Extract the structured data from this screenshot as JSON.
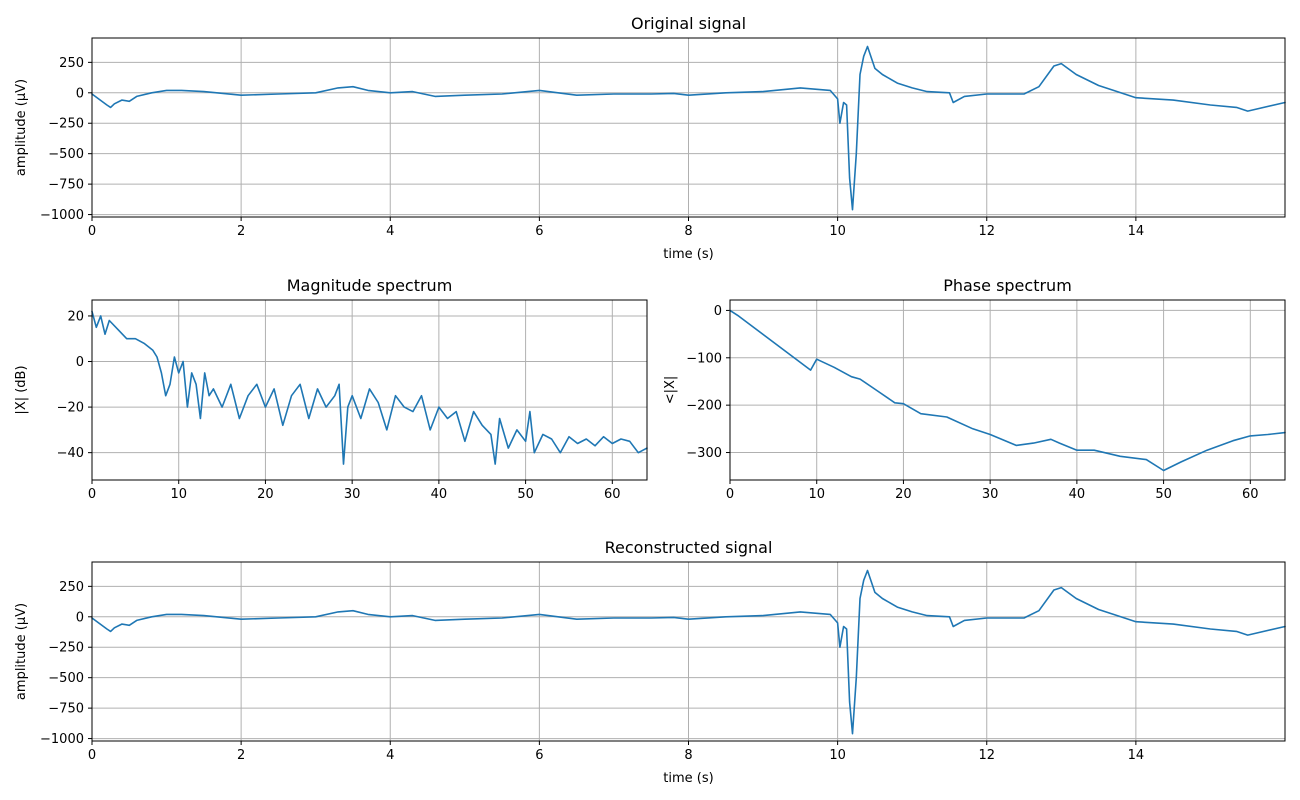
{
  "figure": {
    "line_color": "#1f77b4",
    "grid_color": "#b0b0b0"
  },
  "chart_data": [
    {
      "id": "original",
      "type": "line",
      "title": "Original signal",
      "xlabel": "time (s)",
      "ylabel": "amplitude (µV)",
      "xlim": [
        0,
        16.0
      ],
      "ylim": [
        -1020,
        450
      ],
      "xticks": [
        0,
        2,
        4,
        6,
        8,
        10,
        12,
        14
      ],
      "yticks": [
        250,
        0,
        -250,
        -500,
        -750,
        -1000
      ],
      "xtick_labels": [
        "0",
        "2",
        "4",
        "6",
        "8",
        "10",
        "12",
        "14"
      ],
      "ytick_labels": [
        "250",
        "0",
        "−250",
        "−500",
        "−750",
        "−1000"
      ],
      "grid": true,
      "x": [
        0,
        0.2,
        0.25,
        0.3,
        0.4,
        0.5,
        0.6,
        0.8,
        1.0,
        1.2,
        1.5,
        2.0,
        2.5,
        3.0,
        3.3,
        3.5,
        3.7,
        4.0,
        4.3,
        4.6,
        5.0,
        5.5,
        6.0,
        6.5,
        7.0,
        7.5,
        7.8,
        8.0,
        8.5,
        9.0,
        9.5,
        9.9,
        10.0,
        10.03,
        10.08,
        10.12,
        10.16,
        10.2,
        10.25,
        10.3,
        10.35,
        10.4,
        10.5,
        10.6,
        10.8,
        11.0,
        11.2,
        11.5,
        11.55,
        11.7,
        12.0,
        12.5,
        12.7,
        12.9,
        13.0,
        13.2,
        13.5,
        13.7,
        14.0,
        14.5,
        15.0,
        15.35,
        15.5,
        16.0
      ],
      "y": [
        -10,
        -100,
        -120,
        -90,
        -60,
        -70,
        -30,
        0,
        20,
        20,
        10,
        -20,
        -10,
        0,
        40,
        50,
        20,
        0,
        10,
        -30,
        -20,
        -10,
        20,
        -20,
        -10,
        -10,
        -5,
        -20,
        0,
        10,
        40,
        20,
        -50,
        -250,
        -80,
        -100,
        -700,
        -960,
        -500,
        150,
        300,
        380,
        200,
        150,
        80,
        40,
        10,
        0,
        -80,
        -30,
        -10,
        -10,
        50,
        220,
        240,
        150,
        60,
        20,
        -40,
        -60,
        -100,
        -120,
        -150,
        -80
      ]
    },
    {
      "id": "magnitude",
      "type": "line",
      "title": "Magnitude spectrum",
      "xlabel": "",
      "ylabel": "|X| (dB)",
      "xlim": [
        0,
        64
      ],
      "ylim": [
        -52,
        27
      ],
      "xticks": [
        0,
        10,
        20,
        30,
        40,
        50,
        60
      ],
      "yticks": [
        20,
        0,
        -20,
        -40
      ],
      "xtick_labels": [
        "0",
        "10",
        "20",
        "30",
        "40",
        "50",
        "60"
      ],
      "ytick_labels": [
        "20",
        "0",
        "−20",
        "−40"
      ],
      "grid": true,
      "x": [
        0,
        0.5,
        1,
        1.5,
        2,
        3,
        4,
        5,
        6,
        7,
        7.5,
        8,
        8.5,
        9,
        9.5,
        10,
        10.5,
        11,
        11.5,
        12,
        12.5,
        13,
        13.5,
        14,
        15,
        16,
        17,
        18,
        19,
        20,
        21,
        22,
        23,
        24,
        25,
        26,
        27,
        28,
        28.5,
        29,
        29.5,
        30,
        31,
        32,
        33,
        34,
        35,
        36,
        37,
        38,
        39,
        40,
        41,
        42,
        43,
        44,
        45,
        46,
        46.5,
        47,
        48,
        49,
        50,
        50.5,
        51,
        52,
        53,
        54,
        55,
        56,
        57,
        58,
        59,
        60,
        61,
        62,
        63,
        64
      ],
      "y": [
        22,
        15,
        20,
        12,
        18,
        14,
        10,
        10,
        8,
        5,
        2,
        -5,
        -15,
        -10,
        2,
        -5,
        0,
        -20,
        -5,
        -10,
        -25,
        -5,
        -15,
        -12,
        -20,
        -10,
        -25,
        -15,
        -10,
        -20,
        -12,
        -28,
        -15,
        -10,
        -25,
        -12,
        -20,
        -15,
        -10,
        -45,
        -20,
        -15,
        -25,
        -12,
        -18,
        -30,
        -15,
        -20,
        -22,
        -15,
        -30,
        -20,
        -25,
        -22,
        -35,
        -22,
        -28,
        -32,
        -45,
        -25,
        -38,
        -30,
        -35,
        -22,
        -40,
        -32,
        -34,
        -40,
        -33,
        -36,
        -34,
        -37,
        -33,
        -36,
        -34,
        -35,
        -40,
        -38
      ]
    },
    {
      "id": "phase",
      "type": "line",
      "title": "Phase spectrum",
      "xlabel": "",
      "ylabel": "<|X|",
      "xlim": [
        0,
        64
      ],
      "ylim": [
        -358,
        22
      ],
      "xticks": [
        0,
        10,
        20,
        30,
        40,
        50,
        60
      ],
      "yticks": [
        0,
        -100,
        -200,
        -300
      ],
      "xtick_labels": [
        "0",
        "10",
        "20",
        "30",
        "40",
        "50",
        "60"
      ],
      "ytick_labels": [
        "0",
        "−100",
        "−200",
        "−300"
      ],
      "grid": true,
      "x": [
        0,
        1,
        9.3,
        10,
        12,
        14,
        15,
        17,
        19,
        20,
        22,
        25,
        28,
        30,
        33,
        35,
        37,
        38,
        40,
        42,
        45,
        48,
        50,
        52,
        55,
        58,
        60,
        62,
        64
      ],
      "y": [
        0,
        -12,
        -126,
        -103,
        -120,
        -140,
        -145,
        -170,
        -195,
        -197,
        -218,
        -225,
        -250,
        -262,
        -285,
        -280,
        -272,
        -280,
        -295,
        -295,
        -308,
        -315,
        -338,
        -320,
        -295,
        -275,
        -265,
        -262,
        -258
      ]
    },
    {
      "id": "reconstructed",
      "type": "line",
      "title": "Reconstructed signal",
      "xlabel": "time (s)",
      "ylabel": "amplitude (µV)",
      "xlim": [
        0,
        16.0
      ],
      "ylim": [
        -1020,
        450
      ],
      "xticks": [
        0,
        2,
        4,
        6,
        8,
        10,
        12,
        14
      ],
      "yticks": [
        250,
        0,
        -250,
        -500,
        -750,
        -1000
      ],
      "xtick_labels": [
        "0",
        "2",
        "4",
        "6",
        "8",
        "10",
        "12",
        "14"
      ],
      "ytick_labels": [
        "250",
        "0",
        "−250",
        "−500",
        "−750",
        "−1000"
      ],
      "grid": true,
      "x": [
        0,
        0.2,
        0.25,
        0.3,
        0.4,
        0.5,
        0.6,
        0.8,
        1.0,
        1.2,
        1.5,
        2.0,
        2.5,
        3.0,
        3.3,
        3.5,
        3.7,
        4.0,
        4.3,
        4.6,
        5.0,
        5.5,
        6.0,
        6.5,
        7.0,
        7.5,
        7.8,
        8.0,
        8.5,
        9.0,
        9.5,
        9.9,
        10.0,
        10.03,
        10.08,
        10.12,
        10.16,
        10.2,
        10.25,
        10.3,
        10.35,
        10.4,
        10.5,
        10.6,
        10.8,
        11.0,
        11.2,
        11.5,
        11.55,
        11.7,
        12.0,
        12.5,
        12.7,
        12.9,
        13.0,
        13.2,
        13.5,
        13.7,
        14.0,
        14.5,
        15.0,
        15.35,
        15.5,
        16.0
      ],
      "y": [
        -10,
        -100,
        -120,
        -90,
        -60,
        -70,
        -30,
        0,
        20,
        20,
        10,
        -20,
        -10,
        0,
        40,
        50,
        20,
        0,
        10,
        -30,
        -20,
        -10,
        20,
        -20,
        -10,
        -10,
        -5,
        -20,
        0,
        10,
        40,
        20,
        -50,
        -250,
        -80,
        -100,
        -700,
        -960,
        -500,
        150,
        300,
        380,
        200,
        150,
        80,
        40,
        10,
        0,
        -80,
        -30,
        -10,
        -10,
        50,
        220,
        240,
        150,
        60,
        20,
        -40,
        -60,
        -100,
        -120,
        -150,
        -80
      ]
    }
  ]
}
